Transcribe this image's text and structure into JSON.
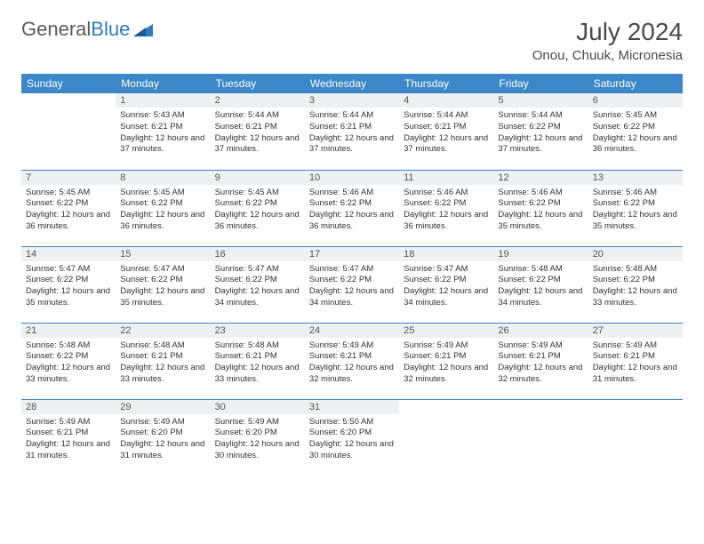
{
  "logo": {
    "text1": "General",
    "text2": "Blue"
  },
  "title": "July 2024",
  "location": "Onou, Chuuk, Micronesia",
  "colors": {
    "header_bg": "#3b87c8",
    "header_text": "#ffffff",
    "daynum_bg": "#eef0f1",
    "border": "#3b87c8",
    "logo_gray": "#5a5a5a",
    "logo_blue": "#2f7bbf"
  },
  "weekdays": [
    "Sunday",
    "Monday",
    "Tuesday",
    "Wednesday",
    "Thursday",
    "Friday",
    "Saturday"
  ],
  "weeks": [
    [
      null,
      {
        "n": "1",
        "sr": "5:43 AM",
        "ss": "6:21 PM",
        "dl": "12 hours and 37 minutes."
      },
      {
        "n": "2",
        "sr": "5:44 AM",
        "ss": "6:21 PM",
        "dl": "12 hours and 37 minutes."
      },
      {
        "n": "3",
        "sr": "5:44 AM",
        "ss": "6:21 PM",
        "dl": "12 hours and 37 minutes."
      },
      {
        "n": "4",
        "sr": "5:44 AM",
        "ss": "6:21 PM",
        "dl": "12 hours and 37 minutes."
      },
      {
        "n": "5",
        "sr": "5:44 AM",
        "ss": "6:22 PM",
        "dl": "12 hours and 37 minutes."
      },
      {
        "n": "6",
        "sr": "5:45 AM",
        "ss": "6:22 PM",
        "dl": "12 hours and 36 minutes."
      }
    ],
    [
      {
        "n": "7",
        "sr": "5:45 AM",
        "ss": "6:22 PM",
        "dl": "12 hours and 36 minutes."
      },
      {
        "n": "8",
        "sr": "5:45 AM",
        "ss": "6:22 PM",
        "dl": "12 hours and 36 minutes."
      },
      {
        "n": "9",
        "sr": "5:45 AM",
        "ss": "6:22 PM",
        "dl": "12 hours and 36 minutes."
      },
      {
        "n": "10",
        "sr": "5:46 AM",
        "ss": "6:22 PM",
        "dl": "12 hours and 36 minutes."
      },
      {
        "n": "11",
        "sr": "5:46 AM",
        "ss": "6:22 PM",
        "dl": "12 hours and 36 minutes."
      },
      {
        "n": "12",
        "sr": "5:46 AM",
        "ss": "6:22 PM",
        "dl": "12 hours and 35 minutes."
      },
      {
        "n": "13",
        "sr": "5:46 AM",
        "ss": "6:22 PM",
        "dl": "12 hours and 35 minutes."
      }
    ],
    [
      {
        "n": "14",
        "sr": "5:47 AM",
        "ss": "6:22 PM",
        "dl": "12 hours and 35 minutes."
      },
      {
        "n": "15",
        "sr": "5:47 AM",
        "ss": "6:22 PM",
        "dl": "12 hours and 35 minutes."
      },
      {
        "n": "16",
        "sr": "5:47 AM",
        "ss": "6:22 PM",
        "dl": "12 hours and 34 minutes."
      },
      {
        "n": "17",
        "sr": "5:47 AM",
        "ss": "6:22 PM",
        "dl": "12 hours and 34 minutes."
      },
      {
        "n": "18",
        "sr": "5:47 AM",
        "ss": "6:22 PM",
        "dl": "12 hours and 34 minutes."
      },
      {
        "n": "19",
        "sr": "5:48 AM",
        "ss": "6:22 PM",
        "dl": "12 hours and 34 minutes."
      },
      {
        "n": "20",
        "sr": "5:48 AM",
        "ss": "6:22 PM",
        "dl": "12 hours and 33 minutes."
      }
    ],
    [
      {
        "n": "21",
        "sr": "5:48 AM",
        "ss": "6:22 PM",
        "dl": "12 hours and 33 minutes."
      },
      {
        "n": "22",
        "sr": "5:48 AM",
        "ss": "6:21 PM",
        "dl": "12 hours and 33 minutes."
      },
      {
        "n": "23",
        "sr": "5:48 AM",
        "ss": "6:21 PM",
        "dl": "12 hours and 33 minutes."
      },
      {
        "n": "24",
        "sr": "5:49 AM",
        "ss": "6:21 PM",
        "dl": "12 hours and 32 minutes."
      },
      {
        "n": "25",
        "sr": "5:49 AM",
        "ss": "6:21 PM",
        "dl": "12 hours and 32 minutes."
      },
      {
        "n": "26",
        "sr": "5:49 AM",
        "ss": "6:21 PM",
        "dl": "12 hours and 32 minutes."
      },
      {
        "n": "27",
        "sr": "5:49 AM",
        "ss": "6:21 PM",
        "dl": "12 hours and 31 minutes."
      }
    ],
    [
      {
        "n": "28",
        "sr": "5:49 AM",
        "ss": "6:21 PM",
        "dl": "12 hours and 31 minutes."
      },
      {
        "n": "29",
        "sr": "5:49 AM",
        "ss": "6:20 PM",
        "dl": "12 hours and 31 minutes."
      },
      {
        "n": "30",
        "sr": "5:49 AM",
        "ss": "6:20 PM",
        "dl": "12 hours and 30 minutes."
      },
      {
        "n": "31",
        "sr": "5:50 AM",
        "ss": "6:20 PM",
        "dl": "12 hours and 30 minutes."
      },
      null,
      null,
      null
    ]
  ],
  "labels": {
    "sunrise": "Sunrise:",
    "sunset": "Sunset:",
    "daylight": "Daylight:"
  }
}
